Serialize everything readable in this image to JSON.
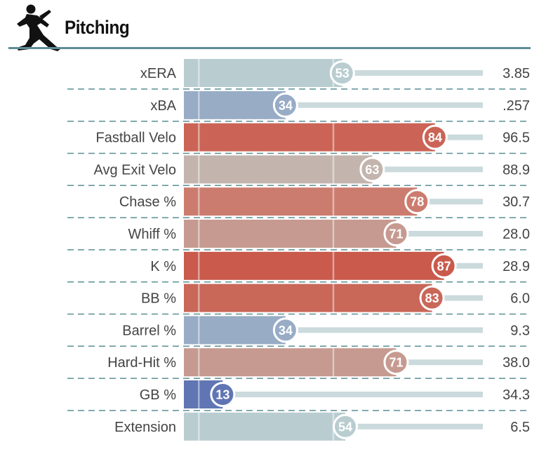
{
  "header": {
    "title": "Pitching",
    "icon": "pitcher-icon"
  },
  "chart_data": {
    "type": "bar",
    "title": "Pitching",
    "xlim": [
      0,
      100
    ],
    "orientation": "horizontal",
    "rows": [
      {
        "metric": "xERA",
        "percentile": 53,
        "value": "3.85",
        "color": "#b9cdd1"
      },
      {
        "metric": "xBA",
        "percentile": 34,
        "value": ".257",
        "color": "#98acc6"
      },
      {
        "metric": "Fastball Velo",
        "percentile": 84,
        "value": "96.5",
        "color": "#cb6456"
      },
      {
        "metric": "Avg Exit Velo",
        "percentile": 63,
        "value": "88.9",
        "color": "#c3b4ad"
      },
      {
        "metric": "Chase %",
        "percentile": 78,
        "value": "30.7",
        "color": "#cc7c6e"
      },
      {
        "metric": "Whiff %",
        "percentile": 71,
        "value": "28.0",
        "color": "#c69a90"
      },
      {
        "metric": "K %",
        "percentile": 87,
        "value": "28.9",
        "color": "#c95a4c"
      },
      {
        "metric": "BB %",
        "percentile": 83,
        "value": "6.0",
        "color": "#c96759"
      },
      {
        "metric": "Barrel %",
        "percentile": 34,
        "value": "9.3",
        "color": "#98acc6"
      },
      {
        "metric": "Hard-Hit %",
        "percentile": 71,
        "value": "38.0",
        "color": "#c69a90"
      },
      {
        "metric": "GB %",
        "percentile": 13,
        "value": "34.3",
        "color": "#6075b3"
      },
      {
        "metric": "Extension",
        "percentile": 54,
        "value": "6.5",
        "color": "#b9cdd1"
      }
    ]
  }
}
